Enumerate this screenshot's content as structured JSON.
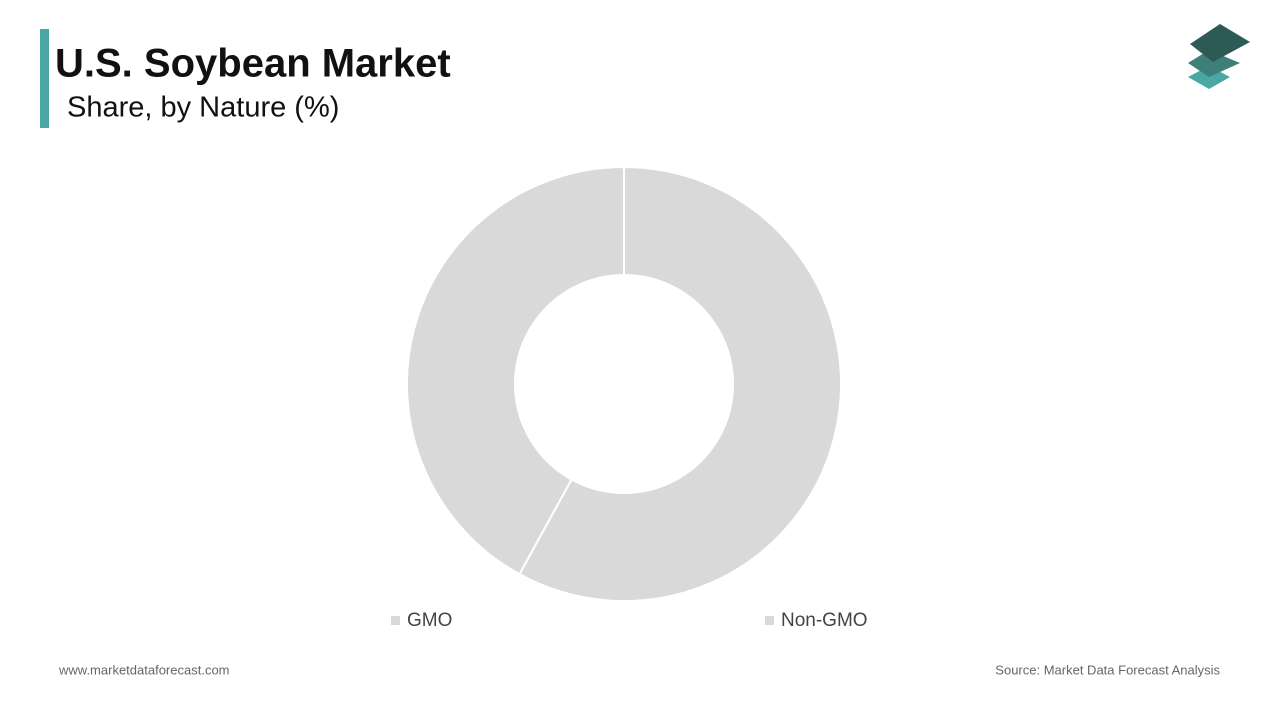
{
  "chart_data": {
    "type": "donut",
    "title": "U.S. Soybean Market",
    "subtitle": "Share, by Nature (%)",
    "categories": [
      "GMO",
      "Non-GMO"
    ],
    "values": [
      58,
      42
    ],
    "colors": [
      "#d9d9d9",
      "#d9d9d9"
    ],
    "website": "www.marketdataforecast.com",
    "source": "Source: Market Data Forecast Analysis"
  }
}
